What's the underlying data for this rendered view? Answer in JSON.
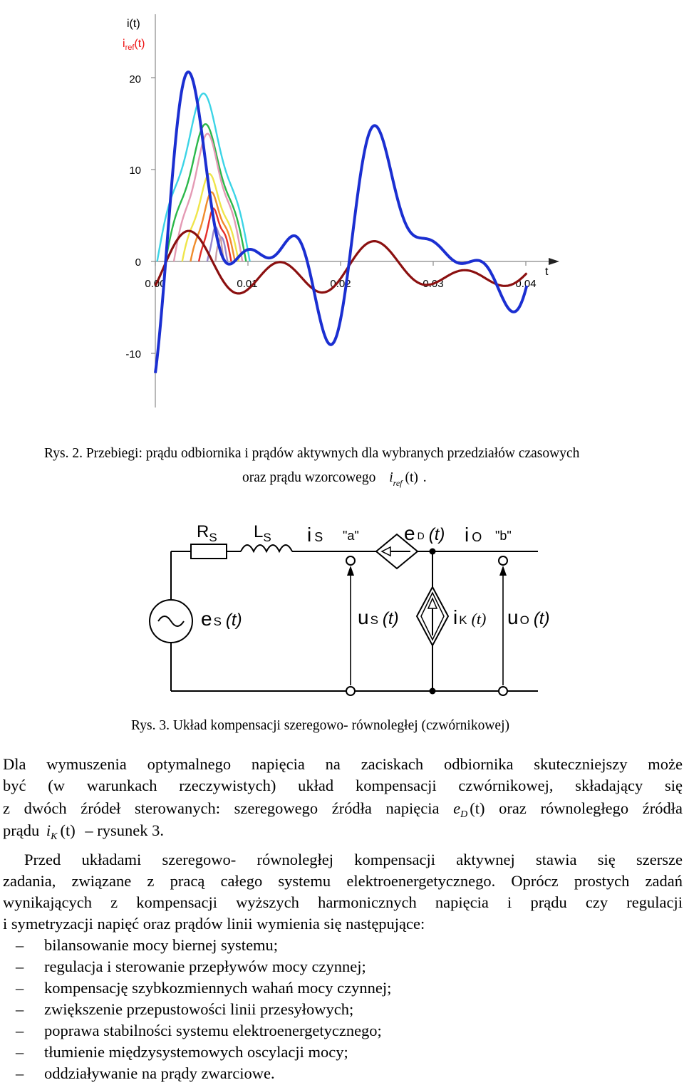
{
  "chart": {
    "y_axis_label_1": "i(t)",
    "y_axis_label_2_main": "i",
    "y_axis_label_2_sub": "ref",
    "y_axis_label_2_tail": "(t)",
    "x_axis_label": "t",
    "y_ticks": [
      "20",
      "10",
      "0",
      "-10"
    ],
    "x_ticks": [
      "0.00",
      "0.01",
      "0.02",
      "0.03",
      "0.04"
    ],
    "colors": {
      "load_current": "#1b2fd1",
      "reference_current": "#8b1010",
      "series": [
        "#3cd4e6",
        "#2bb84a",
        "#e49ab4",
        "#efe54a",
        "#f08c2c",
        "#e6302a",
        "#9a86cc",
        "#c9a0a8"
      ]
    }
  },
  "chart_data": {
    "type": "line",
    "xlabel": "t",
    "ylabel": "i(t), i_ref(t)",
    "xlim": [
      0.0,
      0.045
    ],
    "ylim": [
      -16,
      24
    ],
    "x_ticks": [
      0.0,
      0.01,
      0.02,
      0.03,
      0.04
    ],
    "y_ticks": [
      -10,
      0,
      10,
      20
    ],
    "grid": false,
    "series_estimated_peaks": {
      "load_current_peak": 22.8,
      "load_current_min": -12.6,
      "reference_peak": 3.1,
      "reference_min": -6.1,
      "colored_pulse_peaks": [
        15.9,
        13.0,
        12.1,
        8.3,
        6.6,
        5.1,
        3.5,
        2.4
      ]
    }
  },
  "figure2": {
    "caption_line1": "Rys. 2. Przebiegi: prądu odbiornika i prądów aktywnych dla wybranych przedziałów czasowych",
    "caption_line2_prefix": "oraz prądu wzorcowego",
    "caption_line2_var": "i",
    "caption_line2_sub": "ref",
    "caption_line2_arg": "(t)",
    "caption_line2_suffix": "."
  },
  "circuit": {
    "label_R": "R",
    "label_R_sub": "S",
    "label_L": "L",
    "label_L_sub": "S",
    "label_iS": "i",
    "label_iS_sub": "S",
    "label_a": "\"a\"",
    "label_eD": "e",
    "label_eD_sub": "D",
    "label_eD_arg": "(t)",
    "label_iO": "i",
    "label_iO_sub": "O",
    "label_b": "\"b\"",
    "label_eS": "e",
    "label_eS_sub": "S",
    "label_eS_arg": "(t)",
    "label_uS": "u",
    "label_uS_sub": "S",
    "label_uS_arg": "(t)",
    "label_iK": "i",
    "label_iK_sub": "K",
    "label_iK_arg": "(t)",
    "label_uO": "u",
    "label_uO_sub": "O",
    "label_uO_arg": "(t)"
  },
  "figure3": {
    "caption": "Rys. 3. Układ kompensacji szeregowo- równoległej (czwórnikowej)"
  },
  "text": {
    "p1_line1": "Dla wymuszenia optymalnego napięcia na zaciskach odbiornika skuteczniejszy może",
    "p1_line2": "być (w warunkach rzeczywistych) układ kompensacji czwórnikowej, składający się",
    "p1_line3_a": "z dwóch źródeł sterowanych: szeregowego źródła napięcia",
    "p1_line3_var": "e",
    "p1_line3_sub": "D",
    "p1_line3_arg": "(t)",
    "p1_line3_b": "oraz równoległego źródła",
    "p1_line4_a": "prądu",
    "p1_line4_var": "i",
    "p1_line4_sub": "K",
    "p1_line4_arg": "(t)",
    "p1_line4_b": "– rysunek 3.",
    "p2_line1": "Przed układami szeregowo- równoległej kompensacji aktywnej stawia się szersze",
    "p2_line2": "zadania, związane z pracą całego systemu elektroenergetycznego. Oprócz prostych zadań",
    "p2_line3": "wynikających z kompensacji wyższych harmonicznych napięcia i prądu czy regulacji",
    "p2_line4": "i symetryzacji napięć oraz prądów linii wymienia się następujące:",
    "bullet_dash": "–",
    "bullets": [
      "bilansowanie mocy biernej systemu;",
      "regulacja i sterowanie przepływów mocy czynnej;",
      "kompensację szybkozmiennych wahań mocy czynnej;",
      "zwiększenie przepustowości linii przesyłowych;",
      "poprawa stabilności systemu elektroenergetycznego;",
      "tłumienie międzysystemowych oscylacji mocy;",
      "oddziaływanie na prądy zwarciowe."
    ]
  }
}
